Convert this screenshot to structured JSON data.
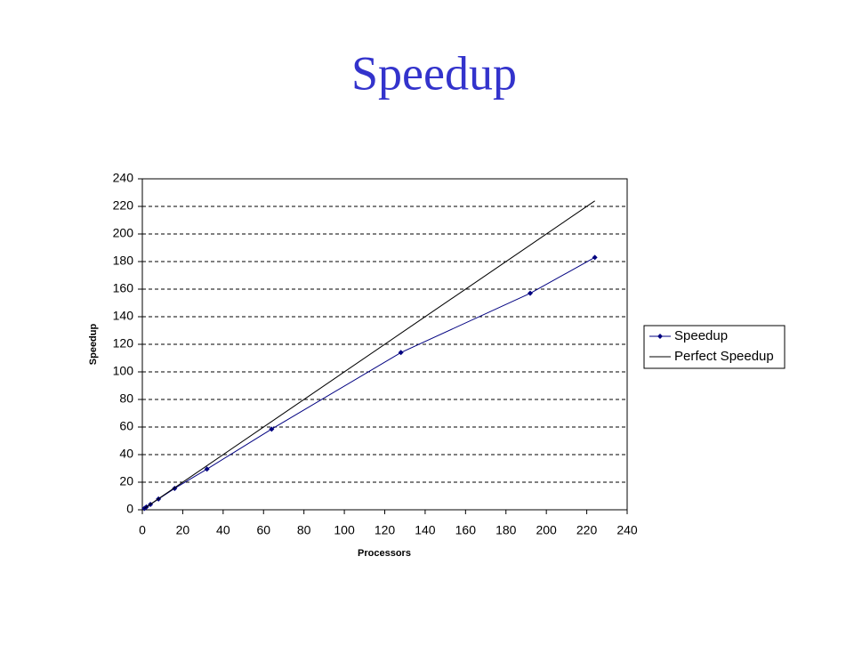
{
  "chart_data": {
    "type": "line",
    "title": "Speedup",
    "x_label": "Processors",
    "y_label": "Speedup",
    "x": [
      1,
      2,
      4,
      8,
      16,
      32,
      64,
      128,
      192,
      224
    ],
    "series": [
      {
        "name": "Speedup",
        "color": "#000080",
        "marker": "diamond",
        "values": [
          1,
          2,
          3.9,
          7.8,
          15.5,
          29.5,
          58.5,
          114,
          157,
          183
        ]
      },
      {
        "name": "Perfect Speedup",
        "color": "#000000",
        "values": [
          1,
          2,
          4,
          8,
          16,
          32,
          64,
          128,
          192,
          224
        ]
      }
    ],
    "xlim": [
      0,
      240
    ],
    "xticks": [
      0,
      20,
      40,
      60,
      80,
      100,
      120,
      140,
      160,
      180,
      200,
      220,
      240
    ],
    "ylim": [
      0,
      240
    ],
    "yticks": [
      0,
      20,
      40,
      60,
      80,
      100,
      120,
      140,
      160,
      180,
      200,
      220,
      240
    ],
    "grid": true,
    "legend": "right"
  }
}
